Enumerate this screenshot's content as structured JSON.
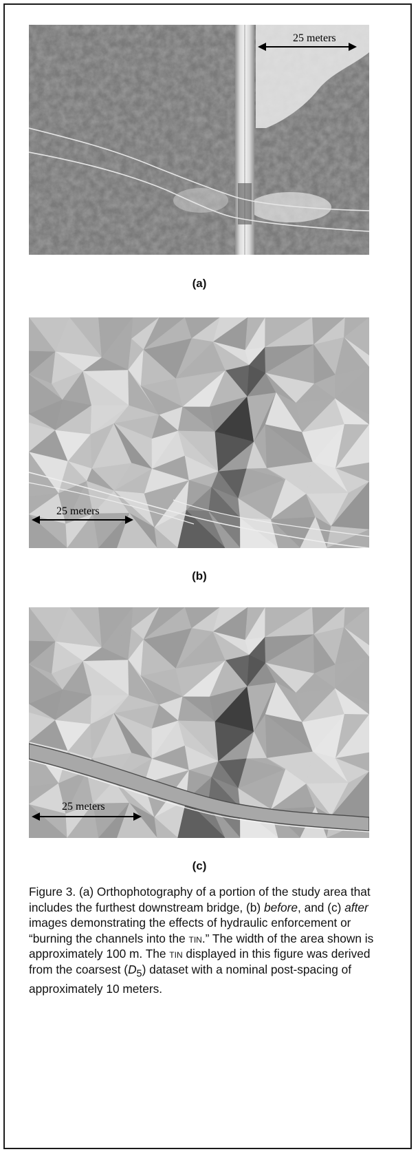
{
  "panels": [
    {
      "id": "a",
      "label": "(a)",
      "scale_text": "25 meters",
      "kind": "orthophoto"
    },
    {
      "id": "b",
      "label": "(b)",
      "scale_text": "25 meters",
      "kind": "tin-before"
    },
    {
      "id": "c",
      "label": "(c)",
      "scale_text": "25 meters",
      "kind": "tin-after"
    }
  ],
  "caption": {
    "part1": "Figure 3. (a) Orthophotography of a portion of the study area that includes the furthest downstream bridge, (b) ",
    "before": "before",
    "part2": ", and (c) ",
    "after": "after",
    "part3": " images demonstrating the effects of hydraulic enforcement or “burning the channels into the ",
    "tin1": "TIN",
    "part4": ".” The width of the area shown is approximately 100 m. The ",
    "tin2": "TIN",
    "part5": " displayed in this figure was derived from the coarsest (",
    "dataset": "D",
    "dataset_sub": "5",
    "part6": ") dataset with a nominal post-spacing of approximately 10 meters."
  }
}
